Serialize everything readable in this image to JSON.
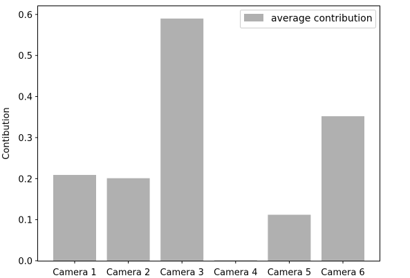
{
  "chart_data": {
    "type": "bar",
    "categories": [
      "Camera 1",
      "Camera 2",
      "Camera 3",
      "Camera 4",
      "Camera 5",
      "Camera 6"
    ],
    "series": [
      {
        "name": "average contribution",
        "values": [
          0.209,
          0.201,
          0.59,
          0.001,
          0.112,
          0.352
        ]
      }
    ],
    "xlabel": "",
    "ylabel": "Contibution",
    "ylim": [
      0,
      0.62
    ],
    "yticks": [
      0.0,
      0.1,
      0.2,
      0.3,
      0.4,
      0.5,
      0.6
    ],
    "ytick_labels": [
      "0.0",
      "0.1",
      "0.2",
      "0.3",
      "0.4",
      "0.5",
      "0.6"
    ],
    "grid": false,
    "legend_position": "top-right",
    "bar_color": "#b0b0b0"
  }
}
